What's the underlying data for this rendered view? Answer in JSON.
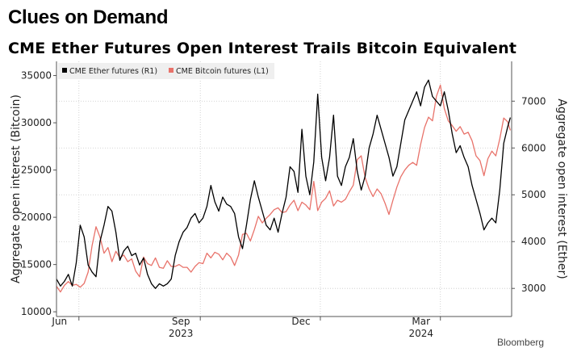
{
  "kicker": "Clues on Demand",
  "source": "Bloomberg",
  "chart_data": {
    "type": "line",
    "title": "CME Ether Futures Open Interest Trails Bitcoin Equivalent",
    "ylabel_left": "Aggregate open interest (Bitcoin)",
    "ylabel_right": "Aggregate open interest (Ether)",
    "xlim": [
      "2023-05-15",
      "2024-04-24"
    ],
    "ylim_left": [
      9500,
      36500
    ],
    "ylim_right": [
      2400,
      7850
    ],
    "left_ticks": [
      10000,
      15000,
      20000,
      25000,
      30000,
      35000
    ],
    "right_ticks": [
      3000,
      4000,
      5000,
      6000,
      7000
    ],
    "x_ticks": [
      {
        "date": "2023-06-01",
        "label": "Jun",
        "year": ""
      },
      {
        "date": "2023-09-01",
        "label": "Sep",
        "year": "2023"
      },
      {
        "date": "2023-12-01",
        "label": "Dec",
        "year": ""
      },
      {
        "date": "2024-03-01",
        "label": "Mar",
        "year": "2024"
      }
    ],
    "grid": true,
    "legend_position": "top-left",
    "series": [
      {
        "name": "CME Ether futures  (R1)",
        "axis": "right",
        "color": "#000000",
        "points": [
          [
            "2023-05-15",
            3200
          ],
          [
            "2023-05-18",
            3050
          ],
          [
            "2023-05-21",
            3150
          ],
          [
            "2023-05-24",
            3300
          ],
          [
            "2023-05-27",
            3050
          ],
          [
            "2023-05-30",
            3550
          ],
          [
            "2023-06-02",
            4350
          ],
          [
            "2023-06-05",
            4100
          ],
          [
            "2023-06-08",
            3500
          ],
          [
            "2023-06-11",
            3350
          ],
          [
            "2023-06-14",
            3250
          ],
          [
            "2023-06-17",
            4000
          ],
          [
            "2023-06-20",
            4350
          ],
          [
            "2023-06-23",
            4750
          ],
          [
            "2023-06-26",
            4650
          ],
          [
            "2023-06-29",
            4200
          ],
          [
            "2023-07-02",
            3600
          ],
          [
            "2023-07-05",
            3800
          ],
          [
            "2023-07-08",
            3900
          ],
          [
            "2023-07-11",
            3700
          ],
          [
            "2023-07-14",
            3750
          ],
          [
            "2023-07-17",
            3500
          ],
          [
            "2023-07-20",
            3650
          ],
          [
            "2023-07-23",
            3300
          ],
          [
            "2023-07-26",
            3100
          ],
          [
            "2023-07-29",
            3000
          ],
          [
            "2023-08-01",
            3100
          ],
          [
            "2023-08-04",
            3050
          ],
          [
            "2023-08-07",
            3100
          ],
          [
            "2023-08-10",
            3200
          ],
          [
            "2023-08-13",
            3700
          ],
          [
            "2023-08-16",
            4000
          ],
          [
            "2023-08-19",
            4200
          ],
          [
            "2023-08-22",
            4300
          ],
          [
            "2023-08-25",
            4500
          ],
          [
            "2023-08-28",
            4600
          ],
          [
            "2023-08-31",
            4400
          ],
          [
            "2023-09-03",
            4500
          ],
          [
            "2023-09-06",
            4750
          ],
          [
            "2023-09-09",
            5200
          ],
          [
            "2023-09-12",
            4850
          ],
          [
            "2023-09-15",
            4650
          ],
          [
            "2023-09-18",
            4950
          ],
          [
            "2023-09-21",
            4800
          ],
          [
            "2023-09-24",
            4750
          ],
          [
            "2023-09-27",
            4600
          ],
          [
            "2023-09-30",
            4100
          ],
          [
            "2023-10-03",
            3850
          ],
          [
            "2023-10-06",
            4350
          ],
          [
            "2023-10-09",
            4900
          ],
          [
            "2023-10-12",
            5300
          ],
          [
            "2023-10-15",
            4950
          ],
          [
            "2023-10-18",
            4650
          ],
          [
            "2023-10-21",
            4350
          ],
          [
            "2023-10-24",
            4250
          ],
          [
            "2023-10-27",
            4500
          ],
          [
            "2023-10-30",
            4200
          ],
          [
            "2023-11-02",
            4600
          ],
          [
            "2023-11-05",
            4950
          ],
          [
            "2023-11-08",
            5600
          ],
          [
            "2023-11-11",
            5500
          ],
          [
            "2023-11-14",
            5050
          ],
          [
            "2023-11-17",
            6400
          ],
          [
            "2023-11-20",
            5400
          ],
          [
            "2023-11-23",
            5000
          ],
          [
            "2023-11-26",
            5700
          ],
          [
            "2023-11-29",
            7150
          ],
          [
            "2023-12-02",
            5800
          ],
          [
            "2023-12-05",
            5300
          ],
          [
            "2023-12-08",
            5800
          ],
          [
            "2023-12-11",
            6700
          ],
          [
            "2023-12-14",
            5400
          ],
          [
            "2023-12-17",
            5200
          ],
          [
            "2023-12-20",
            5600
          ],
          [
            "2023-12-23",
            5800
          ],
          [
            "2023-12-26",
            6200
          ],
          [
            "2023-12-29",
            5500
          ],
          [
            "2024-01-01",
            5100
          ],
          [
            "2024-01-04",
            5400
          ],
          [
            "2024-01-07",
            6000
          ],
          [
            "2024-01-10",
            6300
          ],
          [
            "2024-01-13",
            6700
          ],
          [
            "2024-01-16",
            6400
          ],
          [
            "2024-01-19",
            6100
          ],
          [
            "2024-01-22",
            5800
          ],
          [
            "2024-01-25",
            5400
          ],
          [
            "2024-01-28",
            5600
          ],
          [
            "2024-01-31",
            6100
          ],
          [
            "2024-02-03",
            6600
          ],
          [
            "2024-02-06",
            6800
          ],
          [
            "2024-02-09",
            7000
          ],
          [
            "2024-02-12",
            7200
          ],
          [
            "2024-02-15",
            6900
          ],
          [
            "2024-02-18",
            7300
          ],
          [
            "2024-02-21",
            7450
          ],
          [
            "2024-02-24",
            7100
          ],
          [
            "2024-02-27",
            7000
          ],
          [
            "2024-03-01",
            6900
          ],
          [
            "2024-03-04",
            7200
          ],
          [
            "2024-03-07",
            6800
          ],
          [
            "2024-03-10",
            6300
          ],
          [
            "2024-03-13",
            5900
          ],
          [
            "2024-03-16",
            6050
          ],
          [
            "2024-03-19",
            5800
          ],
          [
            "2024-03-22",
            5600
          ],
          [
            "2024-03-25",
            5200
          ],
          [
            "2024-03-28",
            4900
          ],
          [
            "2024-03-31",
            4600
          ],
          [
            "2024-04-03",
            4250
          ],
          [
            "2024-04-06",
            4400
          ],
          [
            "2024-04-09",
            4500
          ],
          [
            "2024-04-12",
            4400
          ],
          [
            "2024-04-15",
            5100
          ],
          [
            "2024-04-18",
            6100
          ],
          [
            "2024-04-21",
            6450
          ],
          [
            "2024-04-23",
            6650
          ]
        ]
      },
      {
        "name": "CME Bitcoin futures (L1)",
        "axis": "left",
        "color": "#e8726a",
        "points": [
          [
            "2023-05-15",
            12700
          ],
          [
            "2023-05-18",
            12100
          ],
          [
            "2023-05-21",
            12800
          ],
          [
            "2023-05-24",
            13200
          ],
          [
            "2023-05-27",
            12800
          ],
          [
            "2023-05-30",
            12900
          ],
          [
            "2023-06-02",
            12600
          ],
          [
            "2023-06-05",
            13000
          ],
          [
            "2023-06-08",
            14200
          ],
          [
            "2023-06-11",
            17000
          ],
          [
            "2023-06-14",
            19000
          ],
          [
            "2023-06-17",
            17900
          ],
          [
            "2023-06-20",
            16200
          ],
          [
            "2023-06-23",
            16800
          ],
          [
            "2023-06-26",
            15300
          ],
          [
            "2023-06-29",
            16400
          ],
          [
            "2023-07-02",
            15700
          ],
          [
            "2023-07-05",
            16000
          ],
          [
            "2023-07-08",
            15300
          ],
          [
            "2023-07-11",
            15600
          ],
          [
            "2023-07-14",
            14300
          ],
          [
            "2023-07-17",
            13700
          ],
          [
            "2023-07-20",
            15800
          ],
          [
            "2023-07-23",
            15100
          ],
          [
            "2023-07-26",
            14900
          ],
          [
            "2023-07-29",
            15700
          ],
          [
            "2023-08-01",
            14700
          ],
          [
            "2023-08-04",
            14600
          ],
          [
            "2023-08-07",
            15400
          ],
          [
            "2023-08-10",
            14800
          ],
          [
            "2023-08-13",
            14800
          ],
          [
            "2023-08-16",
            15000
          ],
          [
            "2023-08-19",
            14700
          ],
          [
            "2023-08-22",
            14700
          ],
          [
            "2023-08-25",
            14200
          ],
          [
            "2023-08-28",
            14800
          ],
          [
            "2023-08-31",
            15200
          ],
          [
            "2023-09-03",
            15100
          ],
          [
            "2023-09-06",
            16200
          ],
          [
            "2023-09-09",
            15700
          ],
          [
            "2023-09-12",
            16300
          ],
          [
            "2023-09-15",
            16100
          ],
          [
            "2023-09-18",
            15500
          ],
          [
            "2023-09-21",
            16200
          ],
          [
            "2023-09-24",
            15800
          ],
          [
            "2023-09-27",
            14900
          ],
          [
            "2023-09-30",
            16000
          ],
          [
            "2023-10-03",
            18200
          ],
          [
            "2023-10-06",
            18300
          ],
          [
            "2023-10-09",
            17500
          ],
          [
            "2023-10-12",
            18700
          ],
          [
            "2023-10-15",
            20100
          ],
          [
            "2023-10-18",
            19400
          ],
          [
            "2023-10-21",
            19900
          ],
          [
            "2023-10-24",
            20300
          ],
          [
            "2023-10-27",
            20800
          ],
          [
            "2023-10-30",
            21000
          ],
          [
            "2023-11-02",
            20500
          ],
          [
            "2023-11-05",
            20600
          ],
          [
            "2023-11-08",
            21300
          ],
          [
            "2023-11-11",
            21800
          ],
          [
            "2023-11-14",
            20700
          ],
          [
            "2023-11-17",
            21600
          ],
          [
            "2023-11-20",
            21300
          ],
          [
            "2023-11-23",
            20800
          ],
          [
            "2023-11-26",
            23800
          ],
          [
            "2023-11-29",
            20700
          ],
          [
            "2023-12-02",
            21600
          ],
          [
            "2023-12-05",
            22000
          ],
          [
            "2023-12-08",
            22800
          ],
          [
            "2023-12-11",
            21200
          ],
          [
            "2023-12-14",
            21800
          ],
          [
            "2023-12-17",
            21600
          ],
          [
            "2023-12-20",
            21900
          ],
          [
            "2023-12-23",
            22700
          ],
          [
            "2023-12-26",
            23400
          ],
          [
            "2023-12-29",
            26100
          ],
          [
            "2024-01-01",
            26500
          ],
          [
            "2024-01-04",
            24200
          ],
          [
            "2024-01-07",
            23000
          ],
          [
            "2024-01-10",
            22200
          ],
          [
            "2024-01-13",
            23000
          ],
          [
            "2024-01-16",
            22500
          ],
          [
            "2024-01-19",
            21500
          ],
          [
            "2024-01-22",
            20300
          ],
          [
            "2024-01-25",
            21800
          ],
          [
            "2024-01-28",
            23200
          ],
          [
            "2024-01-31",
            24300
          ],
          [
            "2024-02-03",
            25000
          ],
          [
            "2024-02-06",
            25500
          ],
          [
            "2024-02-09",
            25800
          ],
          [
            "2024-02-12",
            25500
          ],
          [
            "2024-02-15",
            27700
          ],
          [
            "2024-02-18",
            29500
          ],
          [
            "2024-02-21",
            30600
          ],
          [
            "2024-02-24",
            30200
          ],
          [
            "2024-02-27",
            32800
          ],
          [
            "2024-03-01",
            34000
          ],
          [
            "2024-03-04",
            31500
          ],
          [
            "2024-03-07",
            30200
          ],
          [
            "2024-03-10",
            29700
          ],
          [
            "2024-03-13",
            29100
          ],
          [
            "2024-03-16",
            29600
          ],
          [
            "2024-03-19",
            28800
          ],
          [
            "2024-03-22",
            29000
          ],
          [
            "2024-03-25",
            28100
          ],
          [
            "2024-03-28",
            26500
          ],
          [
            "2024-03-31",
            26000
          ],
          [
            "2024-04-03",
            24400
          ],
          [
            "2024-04-06",
            26200
          ],
          [
            "2024-04-09",
            27000
          ],
          [
            "2024-04-12",
            26500
          ],
          [
            "2024-04-15",
            28300
          ],
          [
            "2024-04-18",
            30500
          ],
          [
            "2024-04-21",
            30100
          ],
          [
            "2024-04-23",
            29200
          ]
        ]
      }
    ]
  }
}
